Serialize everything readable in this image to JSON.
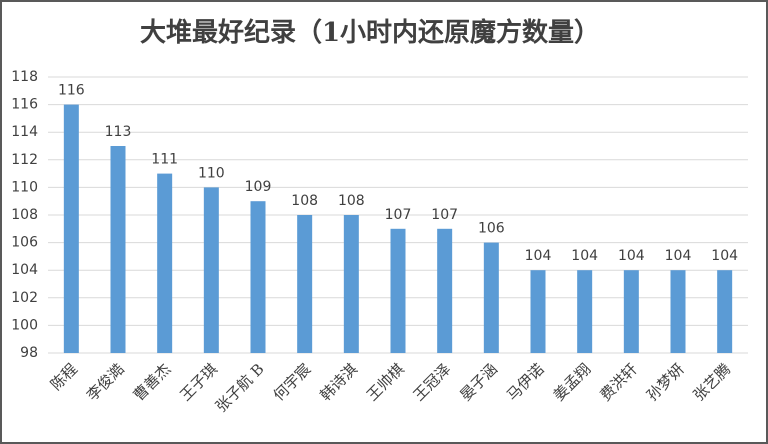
{
  "chart_data": {
    "type": "bar",
    "title": "大堆最好纪录（1小时内还原魔方数量）",
    "categories": [
      "陈程",
      "李俊澔",
      "曹善杰",
      "王子琪",
      "张子航 B",
      "何宇宸",
      "韩诗淇",
      "王帅棋",
      "王冠泽",
      "晏子涵",
      "马伊诺",
      "姜孟翔",
      "费洪轩",
      "孙梦妍",
      "张艺腾"
    ],
    "values": [
      116,
      113,
      111,
      110,
      109,
      108,
      108,
      107,
      107,
      106,
      104,
      104,
      104,
      104,
      104
    ],
    "color": "#5b9bd5",
    "ylim": [
      98,
      118
    ],
    "yticks": [
      98,
      100,
      102,
      104,
      106,
      108,
      110,
      112,
      114,
      116,
      118
    ],
    "grid": true
  }
}
